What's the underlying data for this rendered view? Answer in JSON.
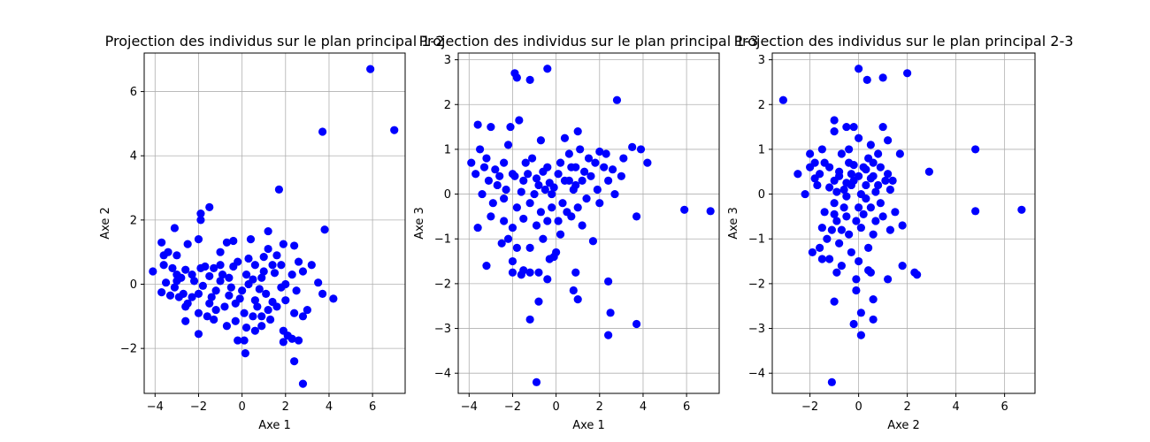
{
  "chart_data": [
    {
      "type": "scatter",
      "title": "Projection des individus sur le plan principal 1-2",
      "xlabel": "Axe 1",
      "ylabel": "Axe 2",
      "xlim": [
        -4.5,
        7.5
      ],
      "ylim": [
        -3.4,
        7.2
      ],
      "xticks": [
        -4,
        -2,
        0,
        2,
        4,
        6
      ],
      "yticks": [
        -2,
        0,
        2,
        4,
        6
      ],
      "grid": true,
      "color": "#0000ff",
      "points": [
        [
          5.9,
          6.7
        ],
        [
          7.0,
          4.8
        ],
        [
          3.7,
          4.75
        ],
        [
          1.7,
          2.95
        ],
        [
          -1.5,
          2.4
        ],
        [
          -1.9,
          2.2
        ],
        [
          -1.9,
          2.0
        ],
        [
          3.8,
          1.7
        ],
        [
          1.2,
          1.65
        ],
        [
          -3.1,
          1.75
        ],
        [
          -3.7,
          1.3
        ],
        [
          -3.4,
          1.0
        ],
        [
          -3.6,
          0.9
        ],
        [
          -4.1,
          0.4
        ],
        [
          -3.0,
          0.9
        ],
        [
          -2.5,
          1.25
        ],
        [
          -2.0,
          1.4
        ],
        [
          -1.0,
          1.0
        ],
        [
          -0.7,
          1.3
        ],
        [
          -0.4,
          1.35
        ],
        [
          0.4,
          1.4
        ],
        [
          1.0,
          0.85
        ],
        [
          1.2,
          1.1
        ],
        [
          1.9,
          1.25
        ],
        [
          2.4,
          1.2
        ],
        [
          -3.6,
          0.6
        ],
        [
          -3.2,
          0.5
        ],
        [
          -2.6,
          0.45
        ],
        [
          -2.3,
          0.3
        ],
        [
          -1.7,
          0.55
        ],
        [
          -1.3,
          0.5
        ],
        [
          -1.0,
          0.6
        ],
        [
          -0.2,
          0.7
        ],
        [
          0.6,
          0.6
        ],
        [
          1.4,
          0.6
        ],
        [
          1.8,
          0.6
        ],
        [
          2.6,
          0.7
        ],
        [
          3.2,
          0.6
        ],
        [
          -3.5,
          0.05
        ],
        [
          -3.0,
          0.1
        ],
        [
          -2.8,
          0.2
        ],
        [
          -2.2,
          0.1
        ],
        [
          -1.5,
          0.25
        ],
        [
          -0.6,
          0.2
        ],
        [
          0.2,
          0.3
        ],
        [
          0.9,
          0.2
        ],
        [
          1.5,
          0.35
        ],
        [
          2.3,
          0.3
        ],
        [
          3.5,
          0.05
        ],
        [
          -3.7,
          -0.25
        ],
        [
          -3.3,
          -0.35
        ],
        [
          -2.9,
          -0.4
        ],
        [
          -2.5,
          -0.6
        ],
        [
          -2.0,
          -0.3
        ],
        [
          -1.5,
          -0.6
        ],
        [
          -1.2,
          -0.2
        ],
        [
          -0.5,
          -0.1
        ],
        [
          0.0,
          -0.2
        ],
        [
          0.3,
          0.0
        ],
        [
          0.6,
          -0.5
        ],
        [
          1.1,
          -0.3
        ],
        [
          1.8,
          -0.1
        ],
        [
          2.5,
          -0.2
        ],
        [
          3.7,
          -0.3
        ],
        [
          4.2,
          -0.45
        ],
        [
          -3.1,
          -0.1
        ],
        [
          -2.6,
          -0.7
        ],
        [
          -2.0,
          -0.9
        ],
        [
          -1.6,
          -1.0
        ],
        [
          -1.2,
          -0.8
        ],
        [
          -0.8,
          -0.7
        ],
        [
          -0.3,
          -0.6
        ],
        [
          0.1,
          -0.9
        ],
        [
          0.5,
          -1.0
        ],
        [
          0.9,
          -1.0
        ],
        [
          1.2,
          -0.8
        ],
        [
          1.6,
          -0.7
        ],
        [
          2.0,
          -0.5
        ],
        [
          2.4,
          -0.9
        ],
        [
          2.8,
          -1.0
        ],
        [
          3.0,
          -0.8
        ],
        [
          -2.6,
          -1.15
        ],
        [
          -2.0,
          -1.55
        ],
        [
          -1.3,
          -1.1
        ],
        [
          -0.7,
          -1.3
        ],
        [
          -0.3,
          -1.15
        ],
        [
          0.2,
          -1.35
        ],
        [
          0.6,
          -1.45
        ],
        [
          0.9,
          -1.3
        ],
        [
          1.3,
          -1.1
        ],
        [
          1.9,
          -1.45
        ],
        [
          2.1,
          -1.6
        ],
        [
          2.3,
          -1.7
        ],
        [
          2.6,
          -1.75
        ],
        [
          1.9,
          -1.8
        ],
        [
          0.1,
          -1.75
        ],
        [
          -0.2,
          -1.75
        ],
        [
          0.15,
          -2.15
        ],
        [
          2.4,
          -2.4
        ],
        [
          2.8,
          -3.1
        ],
        [
          -0.6,
          -0.35
        ],
        [
          -1.8,
          -0.05
        ],
        [
          -2.3,
          -0.4
        ],
        [
          -0.1,
          -0.45
        ],
        [
          0.8,
          -0.15
        ],
        [
          1.4,
          -0.55
        ],
        [
          -1.0,
          0.1
        ],
        [
          -0.4,
          0.55
        ],
        [
          0.5,
          0.15
        ],
        [
          1.0,
          0.4
        ],
        [
          2.0,
          0.0
        ],
        [
          2.8,
          0.4
        ],
        [
          -3.0,
          0.3
        ],
        [
          -1.9,
          0.5
        ],
        [
          -0.9,
          0.3
        ],
        [
          0.3,
          0.8
        ],
        [
          1.6,
          0.9
        ],
        [
          -2.7,
          -0.3
        ],
        [
          -1.4,
          -0.4
        ],
        [
          0.7,
          -0.7
        ]
      ]
    },
    {
      "type": "scatter",
      "title": "Projection des individus sur le plan principal 1-3",
      "xlabel": "Axe 1",
      "ylabel": "Axe 3",
      "xlim": [
        -4.5,
        7.5
      ],
      "ylim": [
        -4.45,
        3.15
      ],
      "xticks": [
        -4,
        -2,
        0,
        2,
        4,
        6
      ],
      "yticks": [
        -4,
        -3,
        -2,
        -1,
        0,
        1,
        2,
        3
      ],
      "grid": true,
      "color": "#0000ff",
      "points": [
        [
          -1.9,
          2.7
        ],
        [
          -1.8,
          2.6
        ],
        [
          -0.4,
          2.8
        ],
        [
          -1.2,
          2.55
        ],
        [
          2.8,
          2.1
        ],
        [
          -1.7,
          1.65
        ],
        [
          -3.6,
          1.55
        ],
        [
          -3.0,
          1.5
        ],
        [
          -2.1,
          1.5
        ],
        [
          1.0,
          1.4
        ],
        [
          -0.7,
          1.2
        ],
        [
          -2.2,
          1.1
        ],
        [
          -3.5,
          1.0
        ],
        [
          -1.1,
          0.8
        ],
        [
          0.4,
          1.25
        ],
        [
          1.1,
          1.0
        ],
        [
          2.0,
          0.95
        ],
        [
          3.5,
          1.05
        ],
        [
          3.9,
          1.0
        ],
        [
          -3.9,
          0.7
        ],
        [
          -3.3,
          0.6
        ],
        [
          -2.8,
          0.55
        ],
        [
          -2.4,
          0.7
        ],
        [
          -1.9,
          0.4
        ],
        [
          -1.4,
          0.7
        ],
        [
          -0.6,
          0.5
        ],
        [
          0.2,
          0.7
        ],
        [
          0.7,
          0.6
        ],
        [
          1.3,
          0.5
        ],
        [
          2.2,
          0.6
        ],
        [
          2.6,
          0.55
        ],
        [
          3.1,
          0.8
        ],
        [
          4.2,
          0.7
        ],
        [
          -3.7,
          0.45
        ],
        [
          -3.1,
          0.3
        ],
        [
          -2.7,
          0.2
        ],
        [
          -2.0,
          0.45
        ],
        [
          -1.5,
          0.3
        ],
        [
          -0.9,
          0.35
        ],
        [
          -0.3,
          0.25
        ],
        [
          0.4,
          0.3
        ],
        [
          0.9,
          0.2
        ],
        [
          1.6,
          0.4
        ],
        [
          2.4,
          0.3
        ],
        [
          3.0,
          0.4
        ],
        [
          -3.4,
          0.0
        ],
        [
          -2.9,
          -0.2
        ],
        [
          -2.4,
          -0.1
        ],
        [
          -1.8,
          -0.3
        ],
        [
          -1.2,
          -0.2
        ],
        [
          -0.7,
          -0.4
        ],
        [
          -0.2,
          0.0
        ],
        [
          0.3,
          -0.2
        ],
        [
          0.8,
          0.1
        ],
        [
          1.4,
          -0.1
        ],
        [
          2.0,
          -0.2
        ],
        [
          3.7,
          -0.5
        ],
        [
          5.9,
          -0.35
        ],
        [
          7.1,
          -0.38
        ],
        [
          -3.6,
          -0.75
        ],
        [
          -3.0,
          -0.5
        ],
        [
          -2.4,
          -0.6
        ],
        [
          -2.0,
          -0.75
        ],
        [
          -1.5,
          -0.55
        ],
        [
          -0.9,
          -0.7
        ],
        [
          -0.4,
          -0.6
        ],
        [
          0.2,
          -0.9
        ],
        [
          0.7,
          -0.5
        ],
        [
          1.2,
          -0.7
        ],
        [
          1.7,
          -1.05
        ],
        [
          -2.2,
          -1.0
        ],
        [
          -2.5,
          -1.1
        ],
        [
          -1.8,
          -1.2
        ],
        [
          -1.2,
          -1.2
        ],
        [
          -0.6,
          -1.0
        ],
        [
          0.0,
          -1.3
        ],
        [
          -0.3,
          -1.45
        ],
        [
          -0.1,
          -1.4
        ],
        [
          -2.0,
          -1.5
        ],
        [
          -3.2,
          -1.6
        ],
        [
          -2.0,
          -1.75
        ],
        [
          -1.6,
          -1.8
        ],
        [
          -1.5,
          -1.7
        ],
        [
          -1.2,
          -1.75
        ],
        [
          -0.8,
          -1.75
        ],
        [
          -0.4,
          -1.9
        ],
        [
          0.9,
          -1.75
        ],
        [
          0.8,
          -2.15
        ],
        [
          2.4,
          -1.95
        ],
        [
          -1.2,
          -2.8
        ],
        [
          -0.8,
          -2.4
        ],
        [
          1.0,
          -2.35
        ],
        [
          2.5,
          -2.65
        ],
        [
          3.7,
          -2.9
        ],
        [
          2.4,
          -3.15
        ],
        [
          -0.9,
          -4.2
        ],
        [
          -0.5,
          0.1
        ],
        [
          0.1,
          0.45
        ],
        [
          0.6,
          0.9
        ],
        [
          1.2,
          0.3
        ],
        [
          1.8,
          0.7
        ],
        [
          2.7,
          0.0
        ],
        [
          -1.0,
          0.0
        ],
        [
          -0.2,
          -0.3
        ],
        [
          0.5,
          -0.4
        ],
        [
          1.0,
          -0.3
        ],
        [
          -2.6,
          0.4
        ],
        [
          -1.6,
          0.05
        ],
        [
          -0.8,
          0.2
        ],
        [
          1.5,
          0.8
        ],
        [
          2.3,
          0.9
        ],
        [
          -3.2,
          0.8
        ],
        [
          -2.3,
          0.1
        ],
        [
          -0.4,
          0.6
        ],
        [
          0.1,
          -0.6
        ],
        [
          0.9,
          0.6
        ],
        [
          1.9,
          0.1
        ],
        [
          -1.3,
          0.45
        ],
        [
          -0.1,
          0.15
        ],
        [
          0.6,
          0.3
        ]
      ]
    },
    {
      "type": "scatter",
      "title": "Projection des individus sur le plan principal 2-3",
      "xlabel": "Axe 2",
      "ylabel": "Axe 3",
      "xlim": [
        -3.55,
        7.25
      ],
      "ylim": [
        -4.45,
        3.15
      ],
      "xticks": [
        -2,
        0,
        2,
        4,
        6
      ],
      "yticks": [
        -4,
        -3,
        -2,
        -1,
        0,
        1,
        2,
        3
      ],
      "grid": true,
      "color": "#0000ff",
      "points": [
        [
          0.0,
          2.8
        ],
        [
          2.0,
          2.7
        ],
        [
          0.35,
          2.55
        ],
        [
          1.0,
          2.6
        ],
        [
          -3.1,
          2.1
        ],
        [
          -1.0,
          1.65
        ],
        [
          -0.5,
          1.5
        ],
        [
          -0.2,
          1.5
        ],
        [
          1.0,
          1.5
        ],
        [
          1.2,
          1.2
        ],
        [
          0.0,
          1.25
        ],
        [
          -1.0,
          1.4
        ],
        [
          -1.5,
          1.0
        ],
        [
          -2.0,
          0.9
        ],
        [
          0.5,
          1.1
        ],
        [
          0.8,
          0.9
        ],
        [
          1.7,
          0.9
        ],
        [
          4.8,
          1.0
        ],
        [
          -2.5,
          0.45
        ],
        [
          -1.8,
          0.7
        ],
        [
          -1.2,
          0.6
        ],
        [
          -0.8,
          0.5
        ],
        [
          -0.4,
          0.7
        ],
        [
          0.2,
          0.6
        ],
        [
          0.6,
          0.4
        ],
        [
          1.2,
          0.45
        ],
        [
          2.9,
          0.5
        ],
        [
          -2.2,
          0.0
        ],
        [
          -1.7,
          0.2
        ],
        [
          -1.0,
          0.3
        ],
        [
          -0.6,
          0.1
        ],
        [
          -0.2,
          0.3
        ],
        [
          0.3,
          0.2
        ],
        [
          0.8,
          0.2
        ],
        [
          1.3,
          0.1
        ],
        [
          -1.4,
          -0.4
        ],
        [
          -1.0,
          -0.2
        ],
        [
          -0.5,
          -0.5
        ],
        [
          0.0,
          -0.3
        ],
        [
          0.5,
          -0.3
        ],
        [
          1.0,
          -0.5
        ],
        [
          1.5,
          -0.4
        ],
        [
          4.8,
          -0.38
        ],
        [
          6.7,
          -0.35
        ],
        [
          -1.5,
          -0.75
        ],
        [
          -0.9,
          -0.6
        ],
        [
          -0.4,
          -0.9
        ],
        [
          0.1,
          -0.75
        ],
        [
          0.7,
          -0.6
        ],
        [
          1.3,
          -0.8
        ],
        [
          1.8,
          -0.7
        ],
        [
          -1.3,
          -1.0
        ],
        [
          -0.8,
          -1.1
        ],
        [
          -0.3,
          -1.3
        ],
        [
          0.4,
          -1.2
        ],
        [
          0.6,
          -0.9
        ],
        [
          -1.6,
          -1.2
        ],
        [
          -1.9,
          -1.3
        ],
        [
          -1.5,
          -1.45
        ],
        [
          -1.2,
          -1.45
        ],
        [
          -0.7,
          -1.6
        ],
        [
          0.0,
          -1.5
        ],
        [
          -0.9,
          -1.75
        ],
        [
          -0.1,
          -1.9
        ],
        [
          0.4,
          -1.7
        ],
        [
          0.5,
          -1.75
        ],
        [
          1.2,
          -1.9
        ],
        [
          1.8,
          -1.6
        ],
        [
          2.3,
          -1.75
        ],
        [
          2.4,
          -1.8
        ],
        [
          -0.1,
          -2.15
        ],
        [
          -1.0,
          -2.4
        ],
        [
          0.6,
          -2.35
        ],
        [
          -0.2,
          -2.9
        ],
        [
          0.1,
          -2.65
        ],
        [
          0.6,
          -2.8
        ],
        [
          0.1,
          -3.15
        ],
        [
          -1.1,
          -4.2
        ],
        [
          -0.3,
          0.45
        ],
        [
          0.1,
          0.0
        ],
        [
          0.4,
          0.8
        ],
        [
          -0.7,
          0.9
        ],
        [
          -1.2,
          0.15
        ],
        [
          0.9,
          0.6
        ],
        [
          -1.8,
          0.35
        ],
        [
          -0.5,
          -0.05
        ],
        [
          0.2,
          -0.45
        ],
        [
          -1.0,
          -0.45
        ],
        [
          0.7,
          0.05
        ],
        [
          1.1,
          0.3
        ],
        [
          -0.3,
          0.2
        ],
        [
          -0.8,
          0.4
        ],
        [
          -1.4,
          0.7
        ],
        [
          0.3,
          0.55
        ],
        [
          -0.1,
          -0.6
        ],
        [
          -0.6,
          -0.3
        ],
        [
          0.9,
          -0.2
        ],
        [
          -1.1,
          -0.8
        ],
        [
          0.5,
          0.35
        ],
        [
          -0.4,
          1.0
        ],
        [
          -2.0,
          0.6
        ],
        [
          -0.2,
          0.65
        ],
        [
          0.6,
          0.7
        ],
        [
          -0.9,
          0.05
        ],
        [
          0.0,
          0.4
        ],
        [
          1.4,
          0.3
        ],
        [
          -1.6,
          0.45
        ],
        [
          -0.5,
          0.25
        ],
        [
          0.3,
          -0.1
        ],
        [
          -0.7,
          -0.8
        ]
      ]
    }
  ]
}
